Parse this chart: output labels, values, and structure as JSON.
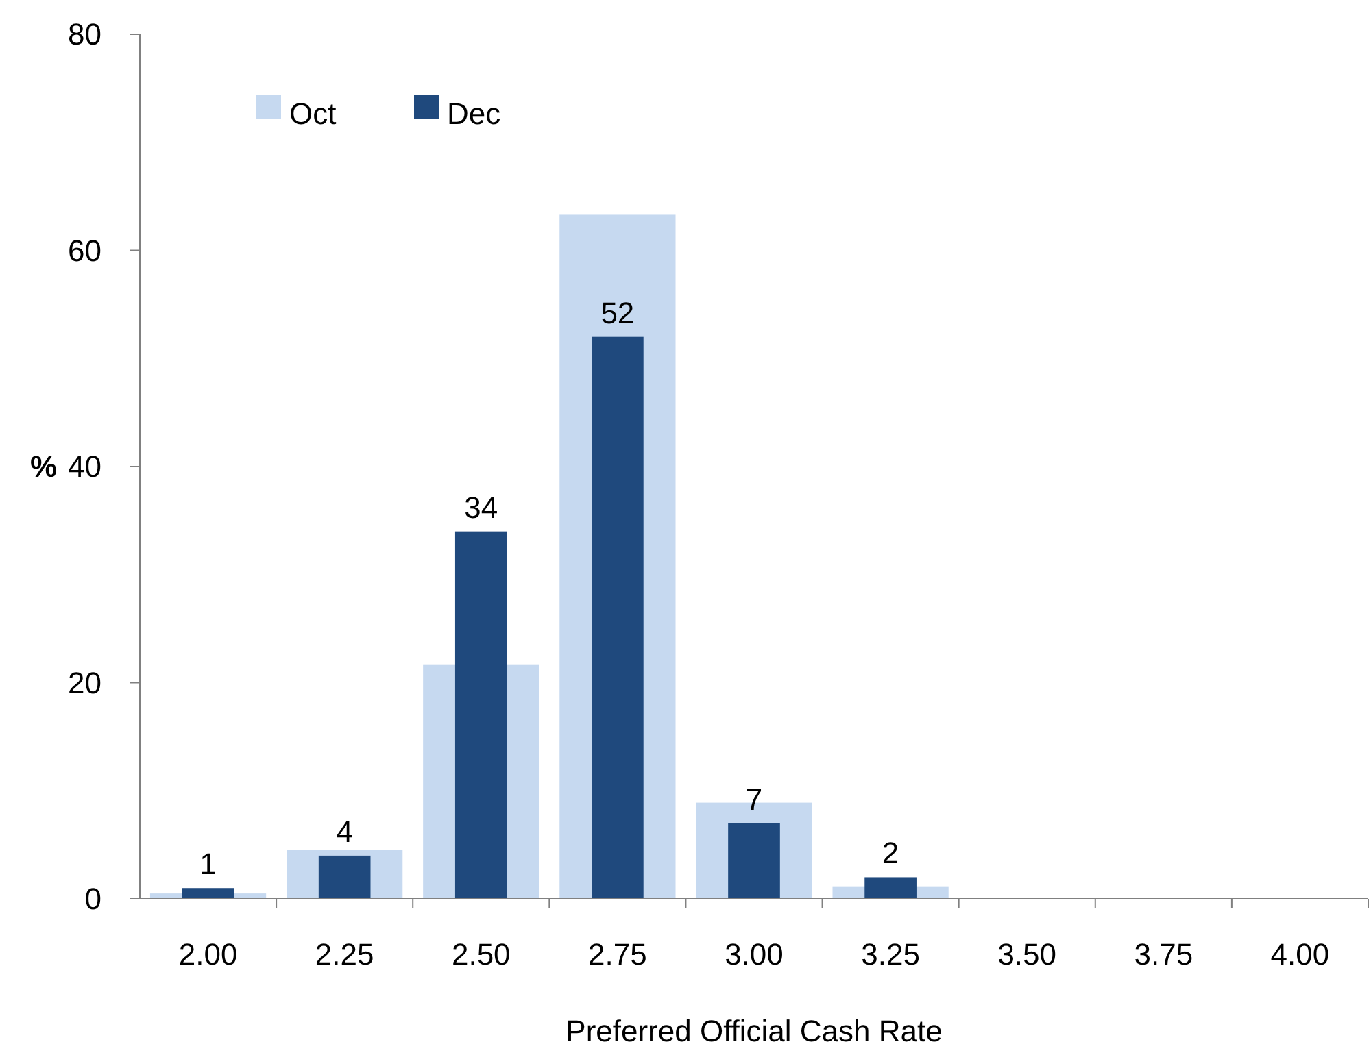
{
  "chart_data": {
    "type": "bar",
    "xlabel": "Preferred Official Cash Rate",
    "ylabel": "%",
    "categories": [
      "2.00",
      "2.25",
      "2.50",
      "2.75",
      "3.00",
      "3.25",
      "3.50",
      "3.75",
      "4.00"
    ],
    "series": [
      {
        "name": "Oct",
        "color": "#c6d9f0",
        "values": [
          0.5,
          4.5,
          21.7,
          63.3,
          8.9,
          1.1,
          0,
          0,
          0
        ]
      },
      {
        "name": "Dec",
        "color": "#1f497d",
        "values": [
          1,
          4,
          34,
          52,
          7,
          2,
          null,
          null,
          null
        ],
        "value_labels": [
          "1",
          "4",
          "34",
          "52",
          "7",
          "2",
          null,
          null,
          null
        ]
      }
    ],
    "ylim": [
      0,
      80
    ],
    "yticks": [
      0,
      20,
      40,
      60,
      80
    ],
    "grid": false,
    "legend": "top left"
  }
}
